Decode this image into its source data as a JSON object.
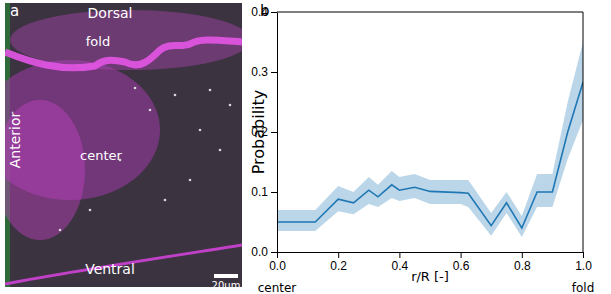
{
  "chart_data": [
    {
      "type": "image",
      "title": "a",
      "annotations": [
        "Dorsal",
        "fold",
        "center",
        "Anterior",
        "Ventral",
        "20µm"
      ]
    },
    {
      "type": "line",
      "title": "b",
      "x_label": "r/R [-]",
      "y_label": "Probability",
      "annotations": [
        "center",
        "fold"
      ],
      "x": [
        0.0,
        0.125,
        0.2,
        0.25,
        0.3,
        0.33,
        0.375,
        0.4,
        0.45,
        0.5,
        0.6,
        0.625,
        0.7,
        0.75,
        0.8,
        0.85,
        0.9,
        0.95,
        1.0
      ],
      "values": [
        0.05,
        0.05,
        0.088,
        0.082,
        0.103,
        0.092,
        0.112,
        0.103,
        0.108,
        0.101,
        0.099,
        0.098,
        0.044,
        0.082,
        0.04,
        0.1,
        0.1,
        0.2,
        0.283
      ],
      "lower": [
        0.035,
        0.035,
        0.068,
        0.063,
        0.08,
        0.075,
        0.09,
        0.085,
        0.09,
        0.08,
        0.08,
        0.075,
        0.027,
        0.065,
        0.025,
        0.075,
        0.075,
        0.155,
        0.22
      ],
      "upper": [
        0.07,
        0.07,
        0.11,
        0.1,
        0.125,
        0.112,
        0.135,
        0.125,
        0.13,
        0.12,
        0.12,
        0.12,
        0.065,
        0.1,
        0.06,
        0.13,
        0.13,
        0.25,
        0.35
      ],
      "color": "#1f77b4",
      "xlim": [
        0,
        1
      ],
      "xticks": [
        {
          "value": 0,
          "label": "0.0"
        },
        {
          "value": 0.2,
          "label": "0.2"
        },
        {
          "value": 0.4,
          "label": "0.4"
        },
        {
          "value": 0.6,
          "label": "0.6"
        },
        {
          "value": 0.8,
          "label": "0.8"
        },
        {
          "value": 1,
          "label": "1.0"
        }
      ],
      "ylim": [
        0,
        0.4
      ],
      "yticks": [
        {
          "value": 0,
          "label": "0.0"
        },
        0.1,
        0.2,
        0.3,
        0.4
      ]
    }
  ]
}
